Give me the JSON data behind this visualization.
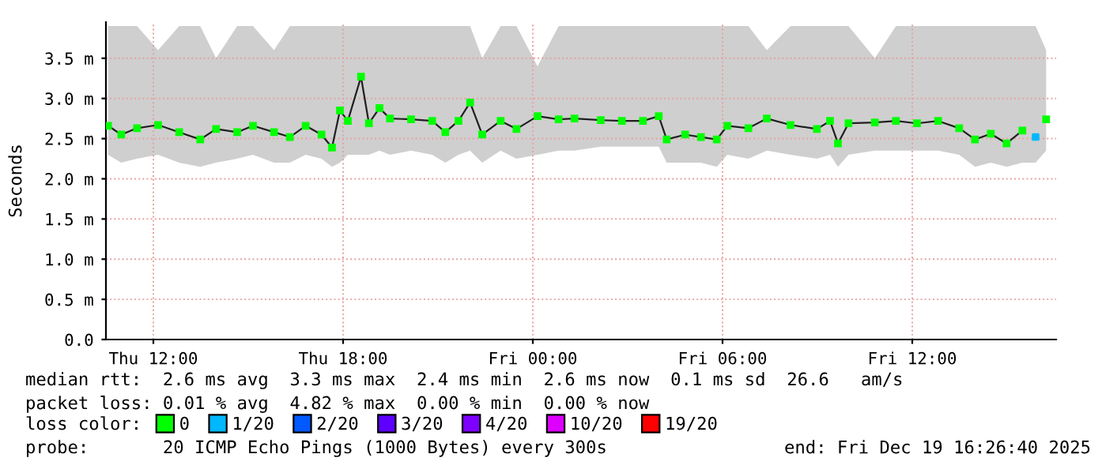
{
  "chart_data": {
    "type": "line",
    "ylabel": "Seconds",
    "legend_title": "loss color:",
    "legend": "bottom",
    "grid": true,
    "marker": "square",
    "line_style": "solid",
    "xlim": [
      "2025-12-18T10:30",
      "2025-12-19T16:33"
    ],
    "xticks": [
      {
        "value": "2025-12-18T12:00",
        "label": "Thu 12:00"
      },
      {
        "value": "2025-12-18T18:00",
        "label": "Thu 18:00"
      },
      {
        "value": "2025-12-19T00:00",
        "label": "Fri 00:00"
      },
      {
        "value": "2025-12-19T06:00",
        "label": "Fri 06:00"
      },
      {
        "value": "2025-12-19T12:00",
        "label": "Fri 12:00"
      }
    ],
    "ylim": [
      0,
      3.95
    ],
    "yticks": [
      {
        "value": 0,
        "label": "0.0"
      },
      {
        "value": 0.5,
        "label": "0.5 m"
      },
      {
        "value": 1.0,
        "label": "1.0 m"
      },
      {
        "value": 1.5,
        "label": "1.5 m"
      },
      {
        "value": 2.0,
        "label": "2.0 m"
      },
      {
        "value": 2.5,
        "label": "2.5 m"
      },
      {
        "value": 3.0,
        "label": "3.0 m"
      },
      {
        "value": 3.5,
        "label": "3.5 m"
      }
    ],
    "series": [
      {
        "name": "0",
        "color": "#00ff00",
        "x": [
          "2025-12-18T10:34",
          "2025-12-18T10:59",
          "2025-12-18T11:29",
          "2025-12-18T12:09",
          "2025-12-18T12:49",
          "2025-12-18T13:29",
          "2025-12-18T13:59",
          "2025-12-18T14:39",
          "2025-12-18T15:09",
          "2025-12-18T15:49",
          "2025-12-18T16:19",
          "2025-12-18T16:49",
          "2025-12-18T17:19",
          "2025-12-18T17:39",
          "2025-12-18T17:54",
          "2025-12-18T18:09",
          "2025-12-18T18:34",
          "2025-12-18T18:49",
          "2025-12-18T19:09",
          "2025-12-18T19:29",
          "2025-12-18T20:09",
          "2025-12-18T20:49",
          "2025-12-18T21:14",
          "2025-12-18T21:39",
          "2025-12-18T22:01",
          "2025-12-18T22:24",
          "2025-12-18T22:59",
          "2025-12-18T23:29",
          "2025-12-19T00:09",
          "2025-12-19T00:49",
          "2025-12-19T01:19",
          "2025-12-19T02:09",
          "2025-12-19T02:49",
          "2025-12-19T03:29",
          "2025-12-19T03:59",
          "2025-12-19T04:14",
          "2025-12-19T04:49",
          "2025-12-19T05:19",
          "2025-12-19T05:49",
          "2025-12-19T06:09",
          "2025-12-19T06:49",
          "2025-12-19T07:24",
          "2025-12-19T08:09",
          "2025-12-19T08:59",
          "2025-12-19T09:24",
          "2025-12-19T09:39",
          "2025-12-19T09:59",
          "2025-12-19T10:49",
          "2025-12-19T11:29",
          "2025-12-19T12:09",
          "2025-12-19T12:49",
          "2025-12-19T13:29",
          "2025-12-19T13:59",
          "2025-12-19T14:29",
          "2025-12-19T14:59",
          "2025-12-19T15:29",
          "2025-12-19T15:54",
          "2025-12-19T16:14"
        ],
        "values": [
          2.66,
          2.55,
          2.63,
          2.67,
          2.58,
          2.49,
          2.62,
          2.58,
          2.66,
          2.58,
          2.52,
          2.66,
          2.55,
          2.39,
          2.85,
          2.72,
          3.27,
          2.69,
          2.88,
          2.75,
          2.74,
          2.72,
          2.58,
          2.72,
          2.95,
          2.55,
          2.72,
          2.62,
          2.78,
          2.74,
          2.75,
          2.73,
          2.72,
          2.72,
          2.78,
          2.49,
          2.55,
          2.52,
          2.49,
          2.66,
          2.63,
          2.75,
          2.67,
          2.62,
          2.72,
          2.44,
          2.69,
          2.7,
          2.72,
          2.69,
          2.72,
          2.63,
          2.49,
          2.56,
          2.44,
          2.6,
          null,
          2.74
        ],
        "lower": [
          2.3,
          2.2,
          2.25,
          2.3,
          2.2,
          2.15,
          2.2,
          2.25,
          2.3,
          2.2,
          2.2,
          2.3,
          2.25,
          2.15,
          2.2,
          2.3,
          2.3,
          2.3,
          2.35,
          2.3,
          2.35,
          2.3,
          2.2,
          2.3,
          2.35,
          2.2,
          2.35,
          2.25,
          2.3,
          2.35,
          2.35,
          2.4,
          2.4,
          2.4,
          2.4,
          2.2,
          2.2,
          2.2,
          2.15,
          2.3,
          2.25,
          2.35,
          2.3,
          2.25,
          2.3,
          2.15,
          2.3,
          2.35,
          2.35,
          2.35,
          2.35,
          2.3,
          2.15,
          2.2,
          2.15,
          2.2,
          2.2,
          2.35
        ],
        "upper": [
          3.9,
          3.9,
          3.9,
          3.6,
          3.9,
          3.9,
          3.5,
          3.9,
          3.9,
          3.6,
          3.9,
          3.9,
          3.9,
          3.9,
          3.9,
          3.9,
          3.9,
          3.9,
          3.9,
          3.9,
          3.9,
          3.9,
          3.9,
          3.9,
          3.9,
          3.5,
          3.9,
          3.9,
          3.4,
          3.9,
          3.9,
          3.9,
          3.9,
          3.9,
          3.9,
          3.9,
          3.9,
          3.9,
          3.9,
          3.9,
          3.9,
          3.6,
          3.9,
          3.9,
          3.9,
          3.9,
          3.9,
          3.5,
          3.9,
          3.9,
          3.9,
          3.9,
          3.9,
          3.9,
          3.9,
          3.9,
          3.9,
          3.6
        ]
      },
      {
        "name": "1/20",
        "color": "#00b8ff",
        "type": "scatter",
        "x": [
          "2025-12-19T15:54"
        ],
        "values": [
          2.52
        ]
      },
      {
        "name": "2/20",
        "color": "#0059ff",
        "type": "scatter"
      },
      {
        "name": "3/20",
        "color": "#5e00ff",
        "type": "scatter"
      },
      {
        "name": "4/20",
        "color": "#7e00ff",
        "type": "scatter"
      },
      {
        "name": "10/20",
        "color": "#dd00ff",
        "type": "scatter"
      },
      {
        "name": "19/20",
        "color": "#ff0000",
        "type": "scatter"
      }
    ],
    "annotations": [
      "median rtt:  2.6 ms avg  3.3 ms max  2.4 ms min  2.6 ms now  0.1 ms sd  26.6   am/s",
      "packet loss: 0.01 % avg  4.82 % max  0.00 % min  0.00 % now",
      "probe:       20 ICMP Echo Pings (1000 Bytes) every 300s",
      "end: Fri Dec 19 16:26:40 2025"
    ]
  }
}
